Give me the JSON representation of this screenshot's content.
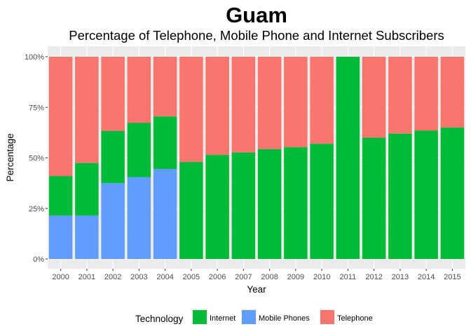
{
  "chart_data": {
    "type": "bar",
    "stacked": true,
    "title": "Guam",
    "subtitle": "Percentage of Telephone, Mobile Phone and Internet Subscribers",
    "xlabel": "Year",
    "ylabel": "Percentage",
    "ylim": [
      0,
      100
    ],
    "yticks": [
      "0%",
      "25%",
      "50%",
      "75%",
      "100%"
    ],
    "grid": true,
    "legend_position": "bottom",
    "legend_title": "Technology",
    "categories": [
      "2000",
      "2001",
      "2002",
      "2003",
      "2004",
      "2005",
      "2006",
      "2007",
      "2008",
      "2009",
      "2010",
      "2011",
      "2012",
      "2013",
      "2014",
      "2015"
    ],
    "series": [
      {
        "name": "Mobile Phones",
        "color": "#619CFF",
        "values": [
          21.5,
          21.5,
          37.5,
          40.5,
          44.5,
          0,
          0,
          0,
          0,
          0,
          0,
          0,
          0,
          0,
          0,
          0
        ]
      },
      {
        "name": "Internet",
        "color": "#00BA38",
        "values": [
          19.5,
          26,
          25.8,
          26.8,
          26,
          48,
          51.5,
          52.7,
          54.3,
          55.3,
          57,
          100,
          60,
          62,
          63.5,
          65
        ]
      },
      {
        "name": "Telephone",
        "color": "#F8766D",
        "values": [
          59,
          52.5,
          36.7,
          32.7,
          29.5,
          52,
          48.5,
          47.3,
          45.7,
          44.7,
          43,
          0,
          40,
          38,
          36.5,
          35
        ]
      }
    ],
    "legend_order": [
      "Internet",
      "Mobile Phones",
      "Telephone"
    ],
    "colors": {
      "panel": "#EBEBEB",
      "grid": "#FFFFFF"
    }
  }
}
